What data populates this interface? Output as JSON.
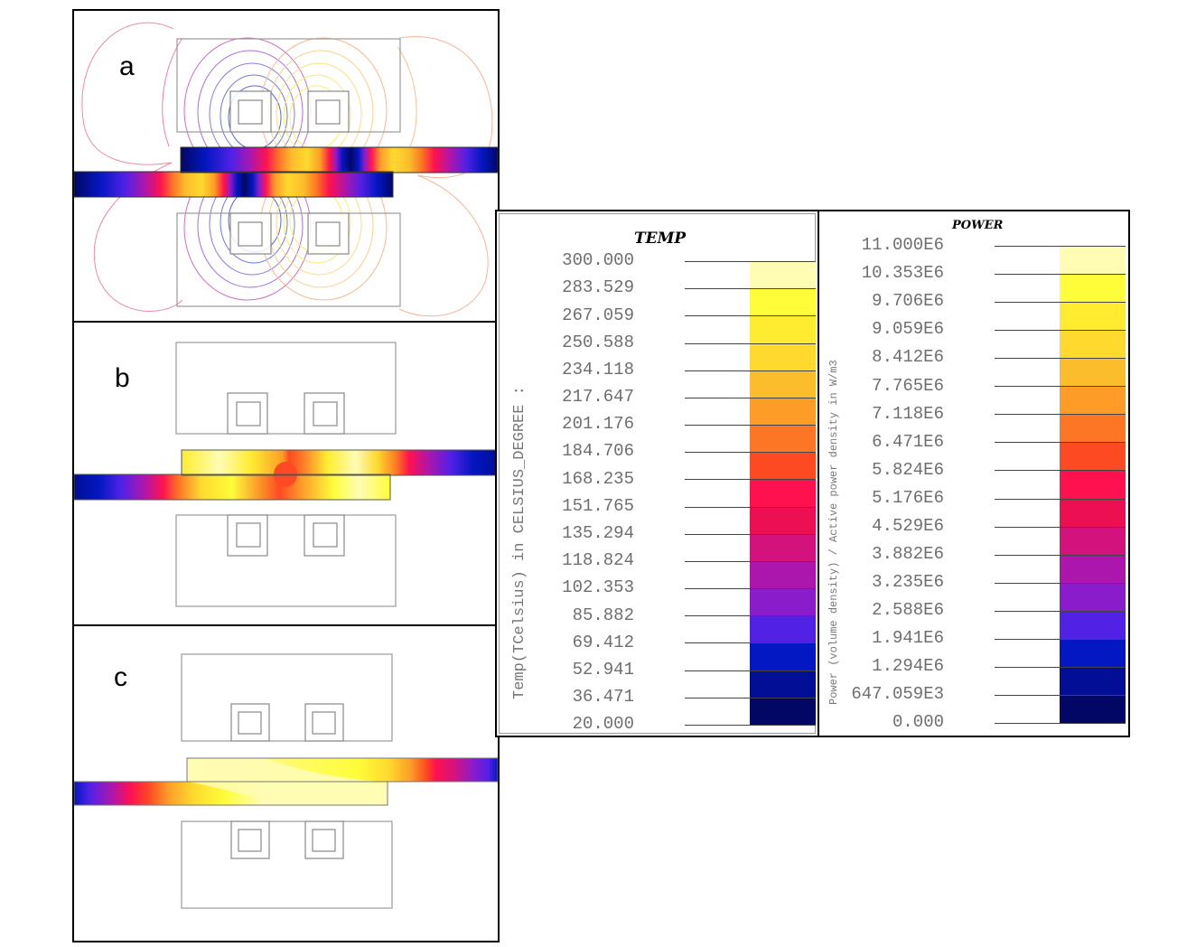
{
  "figure": {
    "panels": [
      {
        "id": "a",
        "label": "a",
        "description": "Magnetic flux line contours with power density distribution in strip"
      },
      {
        "id": "b",
        "label": "b",
        "description": "Temperature distribution in strip, early stage"
      },
      {
        "id": "c",
        "label": "c",
        "description": "Temperature distribution in strip, later stage"
      }
    ]
  },
  "legends": {
    "temp": {
      "title": "TEMP",
      "axis_label": "Temp(TCelsius) in CELSIUS_DEGREE :",
      "ticks": [
        "300.000",
        "283.529",
        "267.059",
        "250.588",
        "234.118",
        "217.647",
        "201.176",
        "184.706",
        "168.235",
        "151.765",
        "135.294",
        "118.824",
        "102.353",
        "85.882",
        "69.412",
        "52.941",
        "36.471",
        "20.000"
      ]
    },
    "power": {
      "title": "POWER",
      "axis_label": "Power (volume density) / Active power density in W/m3",
      "ticks": [
        "11.000E6",
        "10.353E6",
        "9.706E6",
        "9.059E6",
        "8.412E6",
        "7.765E6",
        "7.118E6",
        "6.471E6",
        "5.824E6",
        "5.176E6",
        "4.529E6",
        "3.882E6",
        "3.235E6",
        "2.588E6",
        "1.941E6",
        "1.294E6",
        "647.059E3",
        "0.000"
      ]
    },
    "colors_top_to_bottom": [
      "#fffcb4",
      "#fffc3a",
      "#ffec30",
      "#ffd92e",
      "#fcbd2c",
      "#fd9d28",
      "#fd7625",
      "#fd4a22",
      "#ff1150",
      "#ec1052",
      "#d4127e",
      "#ad16ac",
      "#8a1ccc",
      "#5221e6",
      "#0317c2",
      "#020e96",
      "#020765"
    ]
  },
  "chart_data": {
    "type": "heatmap",
    "title": "",
    "legends": [
      {
        "name": "TEMP",
        "unit": "CELSIUS_DEGREE",
        "quantity": "Temp(TCelsius)",
        "range": [
          20.0,
          300.0
        ],
        "levels": [
          300.0,
          283.529,
          267.059,
          250.588,
          234.118,
          217.647,
          201.176,
          184.706,
          168.235,
          151.765,
          135.294,
          118.824,
          102.353,
          85.882,
          69.412,
          52.941,
          36.471,
          20.0
        ]
      },
      {
        "name": "POWER",
        "unit": "W/m3",
        "quantity": "Power (volume density) / Active power density",
        "range": [
          0,
          11000000
        ],
        "levels": [
          11000000,
          10353000,
          9706000,
          9059000,
          8412000,
          7765000,
          7118000,
          6471000,
          5824000,
          5176000,
          4529000,
          3882000,
          3235000,
          2588000,
          1941000,
          1294000,
          647059,
          0
        ]
      }
    ],
    "panels": [
      "a",
      "b",
      "c"
    ]
  }
}
